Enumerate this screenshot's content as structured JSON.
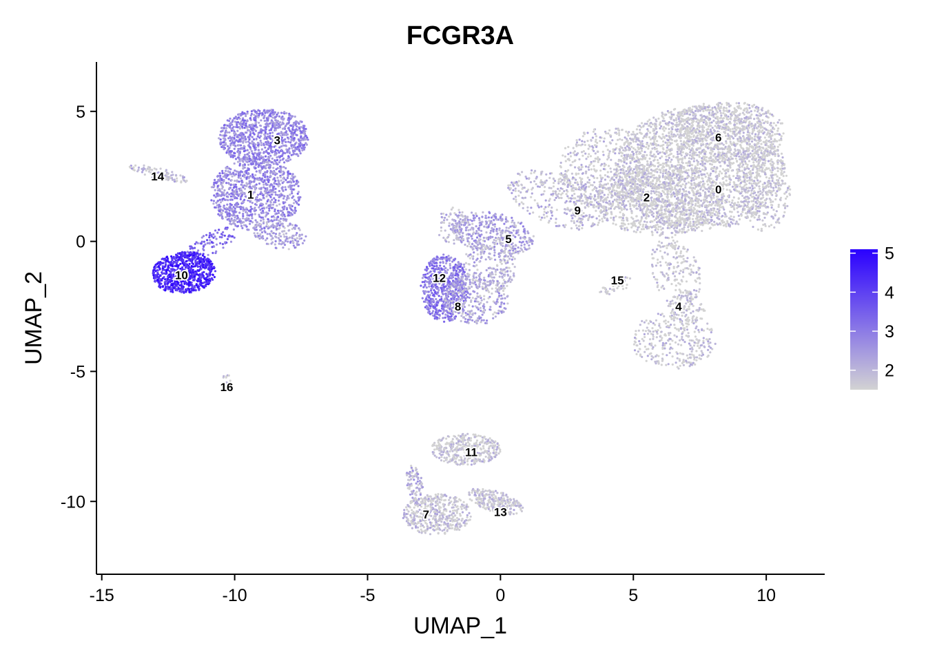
{
  "chart_data": {
    "type": "scatter",
    "title": "FCGR3A",
    "xlabel": "UMAP_1",
    "ylabel": "UMAP_2",
    "xlim": [
      -15.2,
      12.2
    ],
    "ylim": [
      -12.8,
      6.9
    ],
    "xticks": [
      -15,
      -10,
      -5,
      0,
      5,
      10
    ],
    "yticks": [
      5,
      0,
      -5,
      -10
    ],
    "grid": false,
    "legend": {
      "position": "right",
      "min": 1.5,
      "max": 5.1,
      "ticks": [
        2,
        3,
        4,
        5
      ],
      "low_color": "#d3d3d3",
      "high_color": "#2a00ff"
    },
    "clusters": [
      {
        "label": "0",
        "x": 8.2,
        "y": 2.0,
        "expr": 1.6
      },
      {
        "label": "1",
        "x": -9.4,
        "y": 1.8,
        "expr": 2.7
      },
      {
        "label": "2",
        "x": 5.5,
        "y": 1.7,
        "expr": 1.6
      },
      {
        "label": "3",
        "x": -8.4,
        "y": 3.9,
        "expr": 2.8
      },
      {
        "label": "4",
        "x": 6.7,
        "y": -2.5,
        "expr": 1.6
      },
      {
        "label": "5",
        "x": 0.3,
        "y": 0.1,
        "expr": 2.3
      },
      {
        "label": "6",
        "x": 8.2,
        "y": 4.0,
        "expr": 1.6
      },
      {
        "label": "7",
        "x": -2.8,
        "y": -10.5,
        "expr": 1.7
      },
      {
        "label": "8",
        "x": -1.6,
        "y": -2.5,
        "expr": 2.8
      },
      {
        "label": "9",
        "x": 2.9,
        "y": 1.2,
        "expr": 1.9
      },
      {
        "label": "10",
        "x": -12.0,
        "y": -1.3,
        "expr": 4.4
      },
      {
        "label": "11",
        "x": -1.1,
        "y": -8.1,
        "expr": 1.6
      },
      {
        "label": "12",
        "x": -2.3,
        "y": -1.4,
        "expr": 3.0
      },
      {
        "label": "13",
        "x": 0.0,
        "y": -10.4,
        "expr": 1.6
      },
      {
        "label": "14",
        "x": -12.9,
        "y": 2.5,
        "expr": 1.8
      },
      {
        "label": "15",
        "x": 4.4,
        "y": -1.5,
        "expr": 1.6
      },
      {
        "label": "16",
        "x": -10.3,
        "y": -5.6,
        "expr": 1.6
      }
    ]
  }
}
